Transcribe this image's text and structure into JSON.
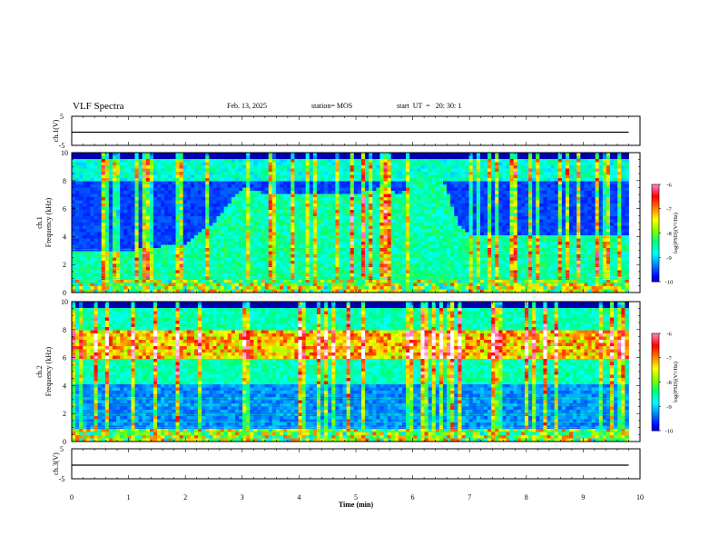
{
  "header": {
    "title": "VLF Spectra",
    "date": "Feb. 13, 2025",
    "station": "station= MOS",
    "start": "start  UT  =   20: 30: 1"
  },
  "colors": {
    "colormap": [
      "#000080",
      "#0000ff",
      "#0080ff",
      "#00ffff",
      "#00ff80",
      "#80ff00",
      "#ffff00",
      "#ff8000",
      "#ff0000",
      "#ff80c0",
      "#ffffff"
    ]
  },
  "chart_data": [
    {
      "type": "line",
      "panel": "ch.1 voltage",
      "ylabel": "ch.1(V)",
      "ylim": [
        -5,
        5
      ],
      "yticks": [
        "5",
        "-5"
      ],
      "x": [
        0,
        9.8
      ],
      "y": [
        0,
        0
      ]
    },
    {
      "type": "heatmap",
      "panel": "ch.1 spectrogram",
      "ylabel": "ch.1\nFrequency (kHz)",
      "ylim": [
        0,
        10
      ],
      "yticks": [
        "0",
        "2",
        "4",
        "6",
        "8",
        "10"
      ],
      "xlim": [
        0,
        10
      ],
      "colorbar": {
        "label": "log(PSD)(V²/Hz)",
        "range": [
          -10,
          -6
        ],
        "ticks": [
          "-6",
          "-7",
          "-8",
          "-9",
          "-10"
        ]
      },
      "profile_time_min": [
        0,
        1,
        2,
        2.5,
        3,
        3.5,
        4,
        4.5,
        5,
        5.5,
        5.8,
        6,
        6.5,
        6.8,
        7,
        8,
        9,
        9.8
      ],
      "hiss_upper_kHz": [
        3,
        3,
        3.5,
        5,
        7.5,
        7,
        7,
        7,
        7,
        7.5,
        7,
        8,
        8.5,
        5,
        4,
        4,
        4,
        4
      ]
    },
    {
      "type": "heatmap",
      "panel": "ch.2 spectrogram",
      "ylabel": "ch.2\nFrequency (kHz)",
      "ylim": [
        0,
        10
      ],
      "yticks": [
        "0",
        "2",
        "4",
        "6",
        "8",
        "10"
      ],
      "xlim": [
        0,
        10
      ],
      "colorbar": {
        "label": "log(PSD)(V²/Hz)",
        "range": [
          -10,
          -6
        ],
        "ticks": [
          "-6",
          "-7",
          "-8",
          "-9",
          "-10"
        ]
      },
      "intense_band_kHz": [
        6,
        8
      ]
    },
    {
      "type": "line",
      "panel": "ch.3 voltage",
      "ylabel": "ch.3(V)",
      "ylim": [
        -5,
        5
      ],
      "yticks": [
        "5",
        "-5"
      ],
      "x": [
        0,
        9.8
      ],
      "y": [
        0,
        0
      ],
      "xlabel": "Time (min)",
      "xticks": [
        "0",
        "1",
        "2",
        "3",
        "4",
        "5",
        "6",
        "7",
        "8",
        "9",
        "10"
      ]
    }
  ]
}
